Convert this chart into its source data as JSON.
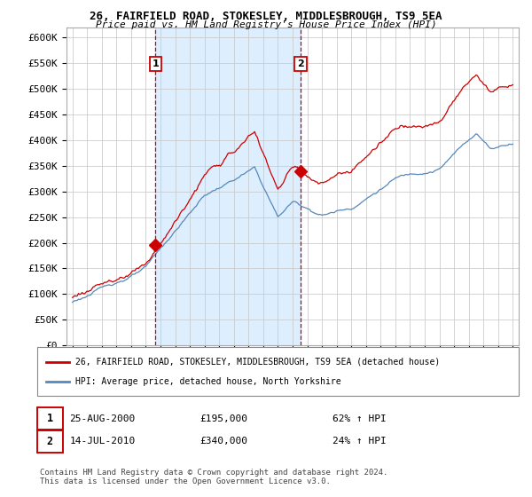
{
  "title": "26, FAIRFIELD ROAD, STOKESLEY, MIDDLESBROUGH, TS9 5EA",
  "subtitle": "Price paid vs. HM Land Registry's House Price Index (HPI)",
  "legend_line1": "26, FAIRFIELD ROAD, STOKESLEY, MIDDLESBROUGH, TS9 5EA (detached house)",
  "legend_line2": "HPI: Average price, detached house, North Yorkshire",
  "sale1_date": "25-AUG-2000",
  "sale1_price": "£195,000",
  "sale1_hpi": "62% ↑ HPI",
  "sale1_year": 2000.65,
  "sale1_value": 195000,
  "sale2_date": "14-JUL-2010",
  "sale2_price": "£340,000",
  "sale2_hpi": "24% ↑ HPI",
  "sale2_year": 2010.54,
  "sale2_value": 340000,
  "footer": "Contains HM Land Registry data © Crown copyright and database right 2024.\nThis data is licensed under the Open Government Licence v3.0.",
  "red_color": "#cc0000",
  "blue_color": "#5588bb",
  "shade_color": "#ddeeff",
  "background_color": "#ffffff",
  "grid_color": "#cccccc",
  "ylim": [
    0,
    620000
  ],
  "yticks": [
    0,
    50000,
    100000,
    150000,
    200000,
    250000,
    300000,
    350000,
    400000,
    450000,
    500000,
    550000,
    600000
  ],
  "xlim_start": 1994.6,
  "xlim_end": 2025.4
}
